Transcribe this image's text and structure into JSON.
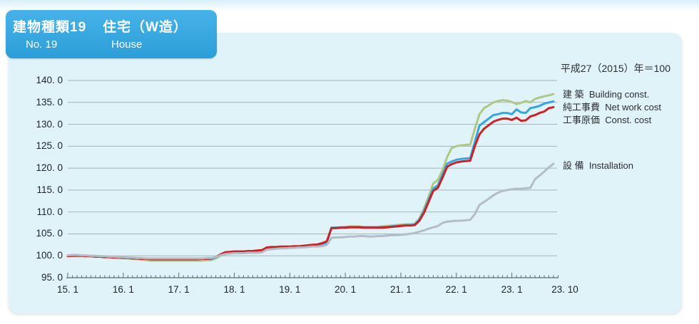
{
  "header": {
    "title_left": "建物種類19",
    "title_right": "住宅（W造）",
    "subtitle_left": "No. 19",
    "subtitle_right": "House"
  },
  "annotation": "平成27（2015）年＝100",
  "colors": {
    "header_blue": "#34a5dd",
    "card_background": "#e0f3f8",
    "gridline": "#a4b4bb",
    "axis": "#5c6b72",
    "building": "#afc888",
    "net_work_cost": "#36a6dc",
    "const_cost": "#cd2127",
    "installation": "#b4bdc4"
  },
  "chart_data": {
    "type": "line",
    "title": "建物種類19 住宅（W造） No. 19 House",
    "base_note": "平成27（2015）年＝100",
    "x_frequency": "monthly",
    "x_range": [
      "15. 1",
      "23. 10"
    ],
    "ylim": [
      95.0,
      140.0
    ],
    "grid": true,
    "legend_position": "right-of-line-ends",
    "y_ticks": [
      {
        "value": 95.0,
        "label": "95. 0"
      },
      {
        "value": 100.0,
        "label": "100. 0"
      },
      {
        "value": 105.0,
        "label": "105. 0"
      },
      {
        "value": 110.0,
        "label": "110. 0"
      },
      {
        "value": 115.0,
        "label": "115. 0"
      },
      {
        "value": 120.0,
        "label": "120. 0"
      },
      {
        "value": 125.0,
        "label": "125. 0"
      },
      {
        "value": 130.0,
        "label": "130. 0"
      },
      {
        "value": 135.0,
        "label": "135. 0"
      },
      {
        "value": 140.0,
        "label": "140. 0"
      }
    ],
    "x_ticks": [
      {
        "month": 0,
        "label": "15. 1"
      },
      {
        "month": 12,
        "label": "16. 1"
      },
      {
        "month": 24,
        "label": "17. 1"
      },
      {
        "month": 36,
        "label": "18. 1"
      },
      {
        "month": 48,
        "label": "19. 1"
      },
      {
        "month": 60,
        "label": "20. 1"
      },
      {
        "month": 72,
        "label": "21. 1"
      },
      {
        "month": 84,
        "label": "22. 1"
      },
      {
        "month": 96,
        "label": "23. 1"
      },
      {
        "month": 105,
        "label": "23. 10"
      }
    ],
    "series": [
      {
        "name": "建築",
        "name_en": "Building const.",
        "legend_label": "建 築  Building const.",
        "color": "#afc888",
        "values": [
          100.0,
          100.1,
          100.1,
          100.0,
          100.0,
          99.9,
          99.8,
          99.8,
          99.7,
          99.7,
          99.6,
          99.5,
          99.5,
          99.4,
          99.3,
          99.2,
          99.1,
          99.0,
          98.9,
          98.9,
          98.9,
          98.9,
          98.9,
          98.9,
          98.9,
          98.9,
          98.9,
          98.9,
          98.9,
          98.9,
          99.0,
          99.0,
          99.4,
          100.0,
          100.5,
          100.6,
          100.7,
          100.7,
          100.7,
          100.7,
          100.7,
          100.7,
          100.8,
          101.6,
          101.7,
          101.7,
          101.8,
          101.8,
          101.8,
          101.9,
          101.9,
          102.0,
          102.1,
          102.2,
          102.3,
          102.4,
          103.2,
          106.4,
          106.5,
          106.5,
          106.6,
          106.7,
          106.7,
          106.7,
          106.6,
          106.6,
          106.6,
          106.6,
          106.7,
          106.8,
          106.9,
          107.0,
          107.1,
          107.2,
          107.2,
          107.3,
          108.5,
          110.8,
          113.5,
          116.5,
          117.3,
          119.5,
          122.5,
          124.6,
          125.0,
          125.2,
          125.3,
          125.4,
          129.0,
          132.3,
          133.7,
          134.3,
          135.0,
          135.3,
          135.5,
          135.4,
          135.1,
          134.6,
          134.9,
          135.3,
          135.0,
          135.8,
          136.1,
          136.4,
          136.6,
          136.9
        ]
      },
      {
        "name": "純工事費",
        "name_en": "Net work cost",
        "legend_label": "純工事費  Net work cost",
        "color": "#36a6dc",
        "values": [
          100.0,
          100.0,
          100.1,
          100.0,
          100.0,
          99.9,
          99.9,
          99.8,
          99.8,
          99.7,
          99.7,
          99.6,
          99.6,
          99.5,
          99.5,
          99.4,
          99.4,
          99.3,
          99.3,
          99.2,
          99.2,
          99.2,
          99.2,
          99.2,
          99.2,
          99.2,
          99.2,
          99.2,
          99.2,
          99.3,
          99.3,
          99.3,
          99.6,
          100.1,
          100.5,
          100.6,
          100.7,
          100.7,
          100.7,
          100.8,
          100.8,
          100.8,
          100.9,
          101.6,
          101.7,
          101.8,
          101.8,
          101.9,
          101.9,
          101.9,
          102.0,
          102.0,
          102.1,
          102.2,
          102.3,
          102.4,
          103.0,
          106.4,
          106.4,
          106.5,
          106.5,
          106.6,
          106.6,
          106.6,
          106.5,
          106.5,
          106.5,
          106.5,
          106.6,
          106.6,
          106.7,
          106.8,
          106.9,
          107.0,
          107.0,
          107.1,
          108.2,
          110.2,
          112.8,
          115.3,
          116.1,
          118.5,
          121.0,
          121.5,
          121.9,
          122.1,
          122.2,
          122.3,
          126.0,
          129.7,
          130.5,
          131.3,
          132.1,
          132.3,
          132.6,
          132.6,
          132.3,
          133.4,
          132.7,
          132.6,
          133.7,
          133.9,
          134.2,
          134.7,
          135.0,
          135.2
        ]
      },
      {
        "name": "工事原価",
        "name_en": "Const. cost",
        "legend_label": "工事原価  Const. cost",
        "color": "#cd2127",
        "values": [
          99.9,
          100.0,
          100.0,
          100.0,
          99.9,
          99.9,
          99.8,
          99.8,
          99.7,
          99.7,
          99.6,
          99.6,
          99.5,
          99.5,
          99.4,
          99.4,
          99.3,
          99.3,
          99.2,
          99.2,
          99.2,
          99.2,
          99.2,
          99.2,
          99.2,
          99.2,
          99.2,
          99.2,
          99.2,
          99.3,
          99.3,
          99.4,
          99.7,
          100.3,
          100.8,
          100.9,
          101.0,
          101.0,
          101.0,
          101.1,
          101.1,
          101.2,
          101.3,
          101.9,
          102.0,
          102.0,
          102.1,
          102.1,
          102.1,
          102.2,
          102.2,
          102.3,
          102.4,
          102.5,
          102.6,
          102.9,
          103.3,
          106.3,
          106.3,
          106.4,
          106.4,
          106.5,
          106.5,
          106.5,
          106.4,
          106.4,
          106.4,
          106.4,
          106.4,
          106.5,
          106.6,
          106.7,
          106.8,
          106.9,
          106.9,
          107.0,
          108.0,
          109.8,
          112.3,
          114.8,
          115.5,
          117.8,
          120.3,
          120.9,
          121.3,
          121.5,
          121.6,
          121.7,
          125.0,
          127.7,
          129.0,
          129.8,
          130.6,
          131.0,
          131.3,
          131.3,
          131.0,
          131.5,
          130.8,
          130.9,
          131.8,
          132.1,
          132.6,
          132.9,
          133.7,
          133.9
        ]
      },
      {
        "name": "設備",
        "name_en": "Installation",
        "legend_label": "設 備  Installation",
        "color": "#b4bdc4",
        "values": [
          100.1,
          100.2,
          100.2,
          100.1,
          100.1,
          100.0,
          100.0,
          99.9,
          99.9,
          99.8,
          99.8,
          99.7,
          99.7,
          99.6,
          99.6,
          99.5,
          99.5,
          99.4,
          99.4,
          99.4,
          99.4,
          99.4,
          99.4,
          99.4,
          99.4,
          99.4,
          99.4,
          99.4,
          99.4,
          99.4,
          99.5,
          99.5,
          99.7,
          100.1,
          100.4,
          100.5,
          100.6,
          100.6,
          100.6,
          100.7,
          100.7,
          100.7,
          100.8,
          101.4,
          101.5,
          101.6,
          101.7,
          101.7,
          101.8,
          101.8,
          101.9,
          101.9,
          102.0,
          102.1,
          102.1,
          102.2,
          102.5,
          104.1,
          104.2,
          104.2,
          104.3,
          104.4,
          104.4,
          104.5,
          104.5,
          104.4,
          104.4,
          104.5,
          104.5,
          104.6,
          104.7,
          104.7,
          104.8,
          104.9,
          105.0,
          105.2,
          105.5,
          105.8,
          106.2,
          106.5,
          106.8,
          107.5,
          107.8,
          107.9,
          108.0,
          108.0,
          108.1,
          108.2,
          109.5,
          111.6,
          112.3,
          113.0,
          113.8,
          114.4,
          114.8,
          115.0,
          115.2,
          115.3,
          115.3,
          115.4,
          115.5,
          117.5,
          118.3,
          119.2,
          120.2,
          121.0
        ]
      }
    ]
  }
}
